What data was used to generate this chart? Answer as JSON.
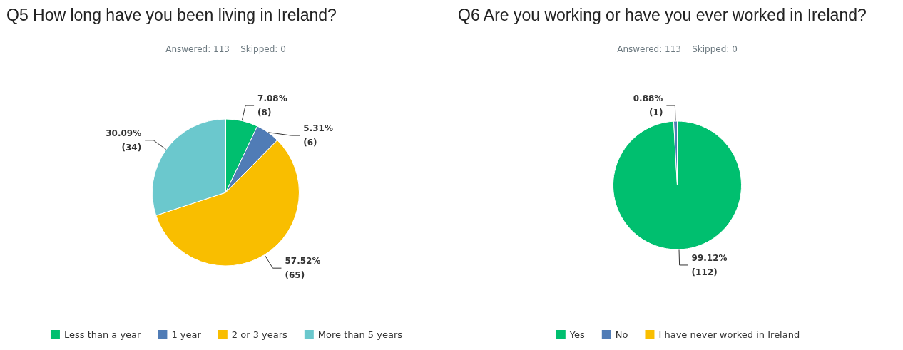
{
  "chart_data": [
    {
      "type": "pie",
      "title": "Q5 How long have you been living in Ireland?",
      "subtitle": "Answered: 113    Skipped: 0",
      "categories": [
        "Less than a year",
        "1 year",
        "2 or 3 years",
        "More than 5 years"
      ],
      "values": [
        8,
        6,
        65,
        34
      ],
      "colors": [
        "#00bf6f",
        "#507cb6",
        "#f9be00",
        "#6bc8cd"
      ],
      "value_labels": [
        "7.08%\n(8)",
        "5.31%\n(6)",
        "57.52%\n(65)",
        "30.09%\n(34)"
      ],
      "legend": "bottom"
    },
    {
      "type": "pie",
      "title": "Q6 Are you working or have you ever worked in Ireland?",
      "subtitle": "Answered: 113    Skipped: 0",
      "categories": [
        "Yes",
        "No",
        "I have never worked in Ireland"
      ],
      "values": [
        112,
        1,
        0
      ],
      "colors": [
        "#00bf6f",
        "#507cb6",
        "#f9be00"
      ],
      "value_labels": [
        "99.12%\n(112)",
        "0.88%\n(1)",
        null
      ],
      "legend": "bottom"
    }
  ]
}
